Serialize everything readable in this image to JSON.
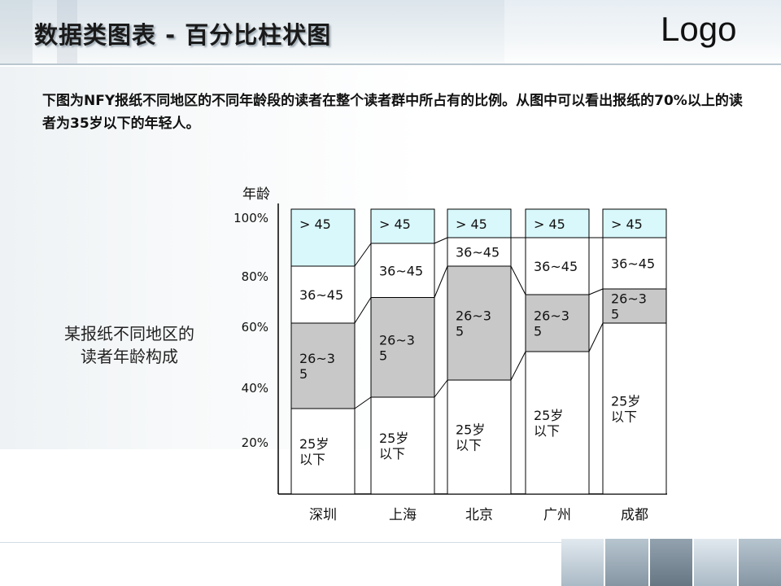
{
  "slide": {
    "title": "数据类图表 - 百分比柱状图",
    "logo": "Logo",
    "description": "下图为NFY报纸不同地区的不同年龄段的读者在整个读者群中所占有的比例。从图中可以看出报纸的70%以上的读者为35岁以下的年轻人。",
    "side_caption": "某报纸不同地区的读者年龄构成"
  },
  "chart_data": {
    "type": "bar",
    "stacked": true,
    "percent": true,
    "ylabel": "年龄",
    "yticks": [
      "20%",
      "40%",
      "60%",
      "80%",
      "100%"
    ],
    "categories": [
      "深圳",
      "上海",
      "北京",
      "广州",
      "成都"
    ],
    "series": [
      {
        "name": "25岁以下",
        "label": "25岁\n以下",
        "values": [
          30,
          34,
          40,
          50,
          60
        ],
        "color": "#ffffff"
      },
      {
        "name": "26~35",
        "label": "26~3\n5",
        "values": [
          30,
          35,
          40,
          20,
          12
        ],
        "color": "#c8c8c8"
      },
      {
        "name": "36~45",
        "label": "36~45",
        "values": [
          20,
          19,
          10,
          20,
          18
        ],
        "color": "#ffffff"
      },
      {
        "name": "> 45",
        "label": "> 45",
        "values": [
          20,
          12,
          10,
          10,
          10
        ],
        "color": "#d9f8fb"
      }
    ],
    "connectors": true
  }
}
